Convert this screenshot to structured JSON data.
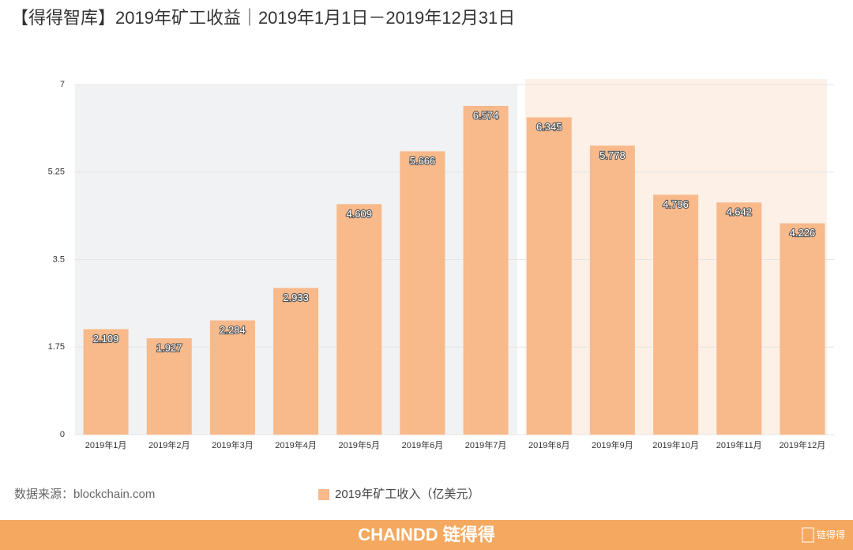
{
  "chart_data": {
    "type": "bar",
    "title": "【得得智库】2019年矿工收益｜2019年1月1日－2019年12月31日",
    "source": "数据来源：blockchain.com",
    "categories": [
      "2019年1月",
      "2019年2月",
      "2019年3月",
      "2019年4月",
      "2019年5月",
      "2019年6月",
      "2019年7月",
      "2019年8月",
      "2019年9月",
      "2019年10月",
      "2019年11月",
      "2019年12月"
    ],
    "series": [
      {
        "name": "2019年矿工收入（亿美元）",
        "color": "#f8b98b",
        "values": [
          2.109,
          1.927,
          2.284,
          2.933,
          4.609,
          5.666,
          6.574,
          6.345,
          5.778,
          4.796,
          4.642,
          4.226
        ]
      }
    ],
    "ylim": [
      0,
      7
    ],
    "yticks": [
      0,
      1.75,
      3.5,
      5.25,
      7
    ],
    "grid": true,
    "legend": "bottom"
  },
  "footer": {
    "brand": "CHAINDD 链得得",
    "badge": "链得得"
  }
}
